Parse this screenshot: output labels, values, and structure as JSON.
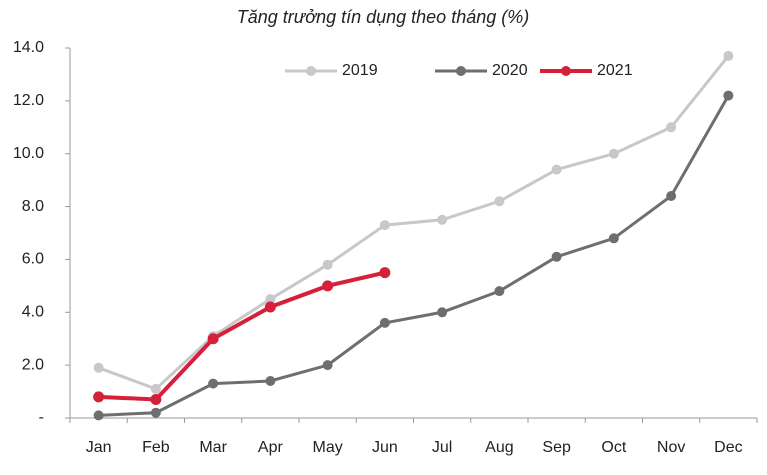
{
  "chart_data": {
    "type": "line",
    "title": "Tăng trưởng tín dụng theo tháng (%)",
    "categories": [
      "Jan",
      "Feb",
      "Mar",
      "Apr",
      "May",
      "Jun",
      "Jul",
      "Aug",
      "Sep",
      "Oct",
      "Nov",
      "Dec"
    ],
    "series": [
      {
        "name": "2019",
        "color": "#c8c8c8",
        "values": [
          1.9,
          1.1,
          3.1,
          4.5,
          5.8,
          7.3,
          7.5,
          8.2,
          9.4,
          10.0,
          11.0,
          13.7
        ]
      },
      {
        "name": "2020",
        "color": "#6e6e6e",
        "values": [
          0.1,
          0.2,
          1.3,
          1.4,
          2.0,
          3.6,
          4.0,
          4.8,
          6.1,
          6.8,
          8.4,
          12.2
        ]
      },
      {
        "name": "2021",
        "color": "#d6203a",
        "values": [
          0.8,
          0.7,
          3.0,
          4.2,
          5.0,
          5.5,
          null,
          null,
          null,
          null,
          null,
          null
        ]
      }
    ],
    "ylim": [
      0,
      14
    ],
    "yticks": [
      {
        "value": 0,
        "label": "-"
      },
      {
        "value": 2,
        "label": "2.0"
      },
      {
        "value": 4,
        "label": "4.0"
      },
      {
        "value": 6,
        "label": "6.0"
      },
      {
        "value": 8,
        "label": "8.0"
      },
      {
        "value": 10,
        "label": "10.0"
      },
      {
        "value": 12,
        "label": "12.0"
      },
      {
        "value": 14,
        "label": "14.0"
      }
    ],
    "legend": "top"
  }
}
